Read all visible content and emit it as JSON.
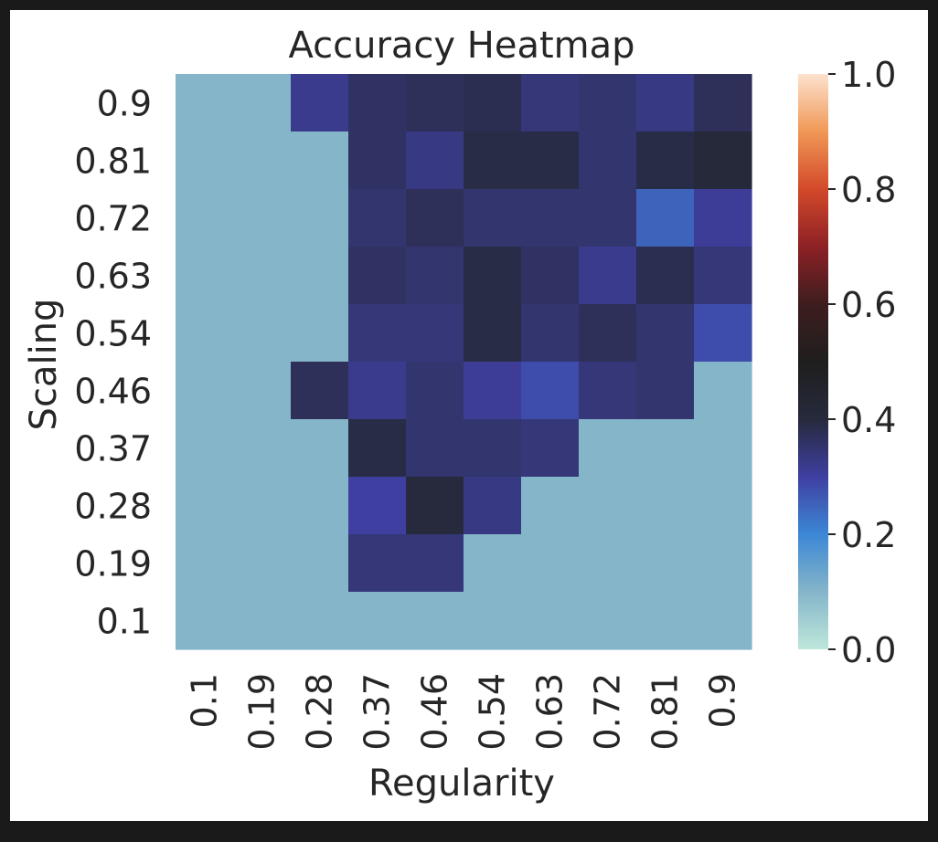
{
  "chart_data": {
    "type": "heatmap",
    "title": "Accuracy Heatmap",
    "xlabel": "Regularity",
    "ylabel": "Scaling",
    "x": [
      "0.1",
      "0.19",
      "0.28",
      "0.37",
      "0.46",
      "0.54",
      "0.63",
      "0.72",
      "0.81",
      "0.9"
    ],
    "y": [
      "0.9",
      "0.81",
      "0.72",
      "0.63",
      "0.54",
      "0.46",
      "0.37",
      "0.28",
      "0.19",
      "0.1"
    ],
    "values": [
      [
        0.1,
        0.1,
        0.32,
        0.36,
        0.37,
        0.38,
        0.34,
        0.35,
        0.33,
        0.37
      ],
      [
        0.1,
        0.1,
        0.1,
        0.36,
        0.33,
        0.39,
        0.39,
        0.35,
        0.39,
        0.41
      ],
      [
        0.1,
        0.1,
        0.1,
        0.35,
        0.37,
        0.35,
        0.35,
        0.35,
        0.25,
        0.31
      ],
      [
        0.1,
        0.1,
        0.1,
        0.36,
        0.35,
        0.39,
        0.36,
        0.32,
        0.38,
        0.34
      ],
      [
        0.1,
        0.1,
        0.1,
        0.34,
        0.34,
        0.39,
        0.35,
        0.37,
        0.35,
        0.28
      ],
      [
        0.1,
        0.1,
        0.37,
        0.32,
        0.35,
        0.31,
        0.28,
        0.34,
        0.35,
        0.1
      ],
      [
        0.1,
        0.1,
        0.1,
        0.39,
        0.35,
        0.35,
        0.34,
        0.1,
        0.1,
        0.1
      ],
      [
        0.1,
        0.1,
        0.1,
        0.3,
        0.4,
        0.33,
        0.1,
        0.1,
        0.1,
        0.1
      ],
      [
        0.1,
        0.1,
        0.1,
        0.34,
        0.34,
        0.1,
        0.1,
        0.1,
        0.1,
        0.1
      ],
      [
        0.1,
        0.1,
        0.1,
        0.1,
        0.1,
        0.1,
        0.1,
        0.1,
        0.1,
        0.1
      ]
    ],
    "colorbar": {
      "ticks": [
        "0.0",
        "0.2",
        "0.4",
        "0.6",
        "0.8",
        "1.0"
      ],
      "tick_values": [
        0.0,
        0.2,
        0.4,
        0.6,
        0.8,
        1.0
      ],
      "vmin": 0.0,
      "vmax": 1.0
    },
    "colormap": "icefire",
    "colormap_stops": [
      {
        "value": 0.0,
        "color": "#bde7db"
      },
      {
        "value": 0.1,
        "color": "#85b5c9"
      },
      {
        "value": 0.2,
        "color": "#3c87d5"
      },
      {
        "value": 0.3,
        "color": "#3f3fa1"
      },
      {
        "value": 0.4,
        "color": "#262a3c"
      },
      {
        "value": 0.5,
        "color": "#1f1e1e"
      },
      {
        "value": 0.6,
        "color": "#3e1d1e"
      },
      {
        "value": 0.7,
        "color": "#8d2125"
      },
      {
        "value": 0.8,
        "color": "#d3492a"
      },
      {
        "value": 0.9,
        "color": "#f09856"
      },
      {
        "value": 1.0,
        "color": "#fde2cf"
      }
    ]
  }
}
